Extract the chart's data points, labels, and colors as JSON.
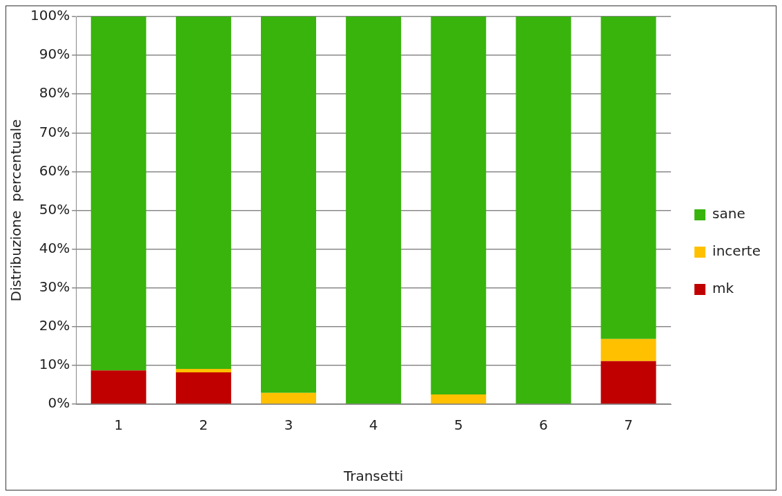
{
  "chart_data": {
    "type": "bar",
    "stacked": true,
    "xlabel": "Transetti",
    "ylabel": "Distribuzione  percentuale",
    "categories": [
      "1",
      "2",
      "3",
      "4",
      "5",
      "6",
      "7"
    ],
    "series": [
      {
        "name": "mk",
        "color": "#c00000",
        "values": [
          8.7,
          8.2,
          0,
          0,
          0,
          0,
          11.1
        ]
      },
      {
        "name": "incerte",
        "color": "#ffc000",
        "values": [
          0,
          0.9,
          2.9,
          0,
          2.5,
          0,
          5.7
        ]
      },
      {
        "name": "sane",
        "color": "#38b40c",
        "values": [
          91.3,
          90.9,
          97.1,
          100,
          97.5,
          100,
          83.2
        ]
      }
    ],
    "ylim": [
      0,
      100
    ],
    "yticks": [
      {
        "value": 0,
        "label": "0%"
      },
      {
        "value": 10,
        "label": "10%"
      },
      {
        "value": 20,
        "label": "20%"
      },
      {
        "value": 30,
        "label": "30%"
      },
      {
        "value": 40,
        "label": "40%"
      },
      {
        "value": 50,
        "label": "50%"
      },
      {
        "value": 60,
        "label": "60%"
      },
      {
        "value": 70,
        "label": "70%"
      },
      {
        "value": 80,
        "label": "80%"
      },
      {
        "value": 90,
        "label": "90%"
      },
      {
        "value": 100,
        "label": "100%"
      }
    ],
    "grid": "y",
    "legend": "right"
  }
}
